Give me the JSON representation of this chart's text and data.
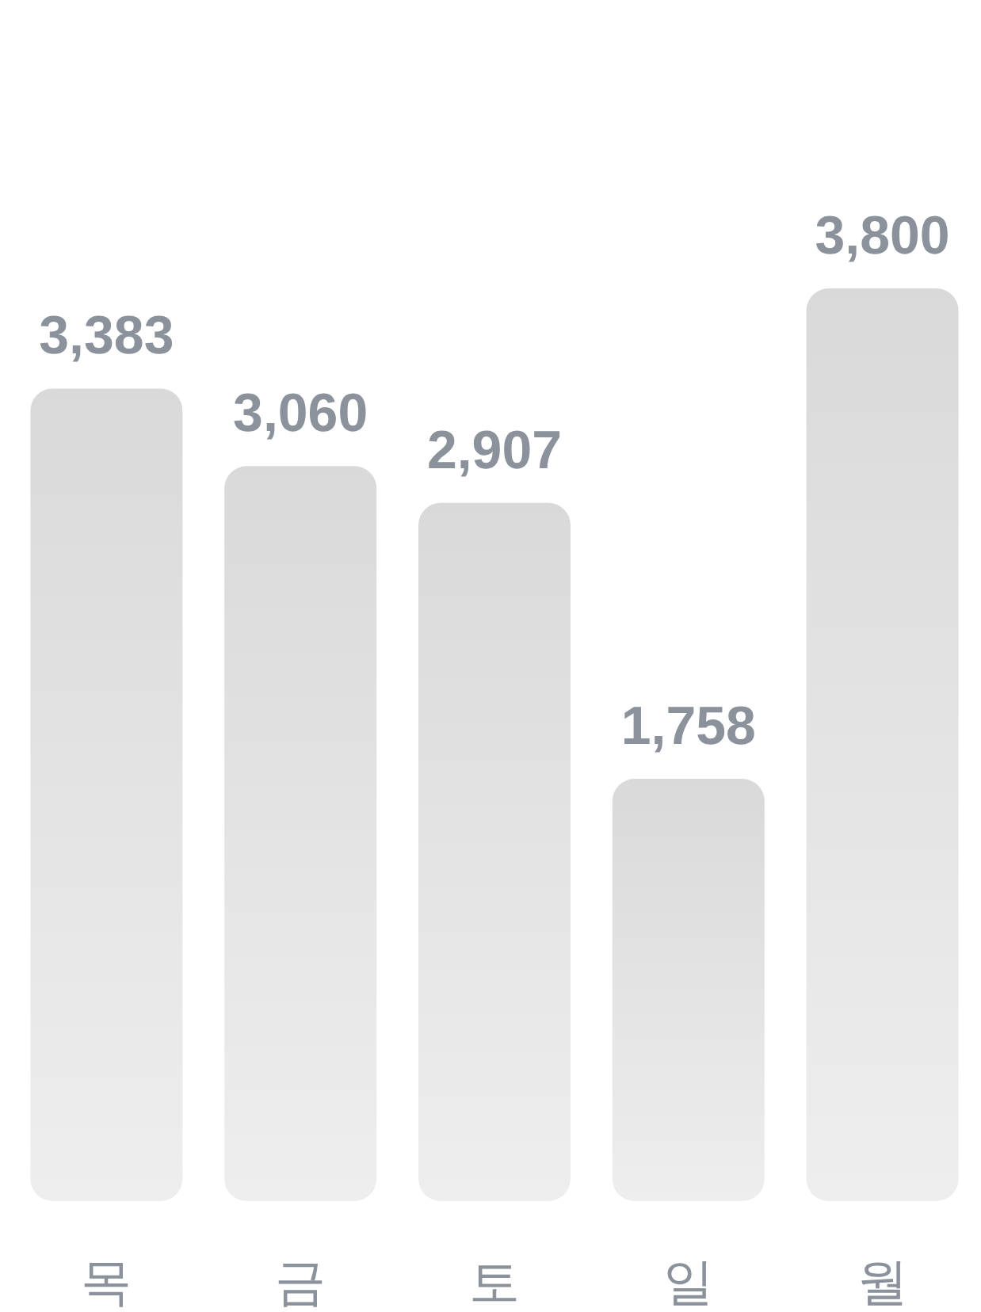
{
  "chart_data": {
    "type": "bar",
    "categories": [
      "목",
      "금",
      "토",
      "일",
      "월"
    ],
    "values": [
      3383,
      3060,
      2907,
      1758,
      3800
    ],
    "value_labels": [
      "3,383",
      "3,060",
      "2,907",
      "1,758",
      "3,800"
    ],
    "color": "#d9d9d9"
  }
}
